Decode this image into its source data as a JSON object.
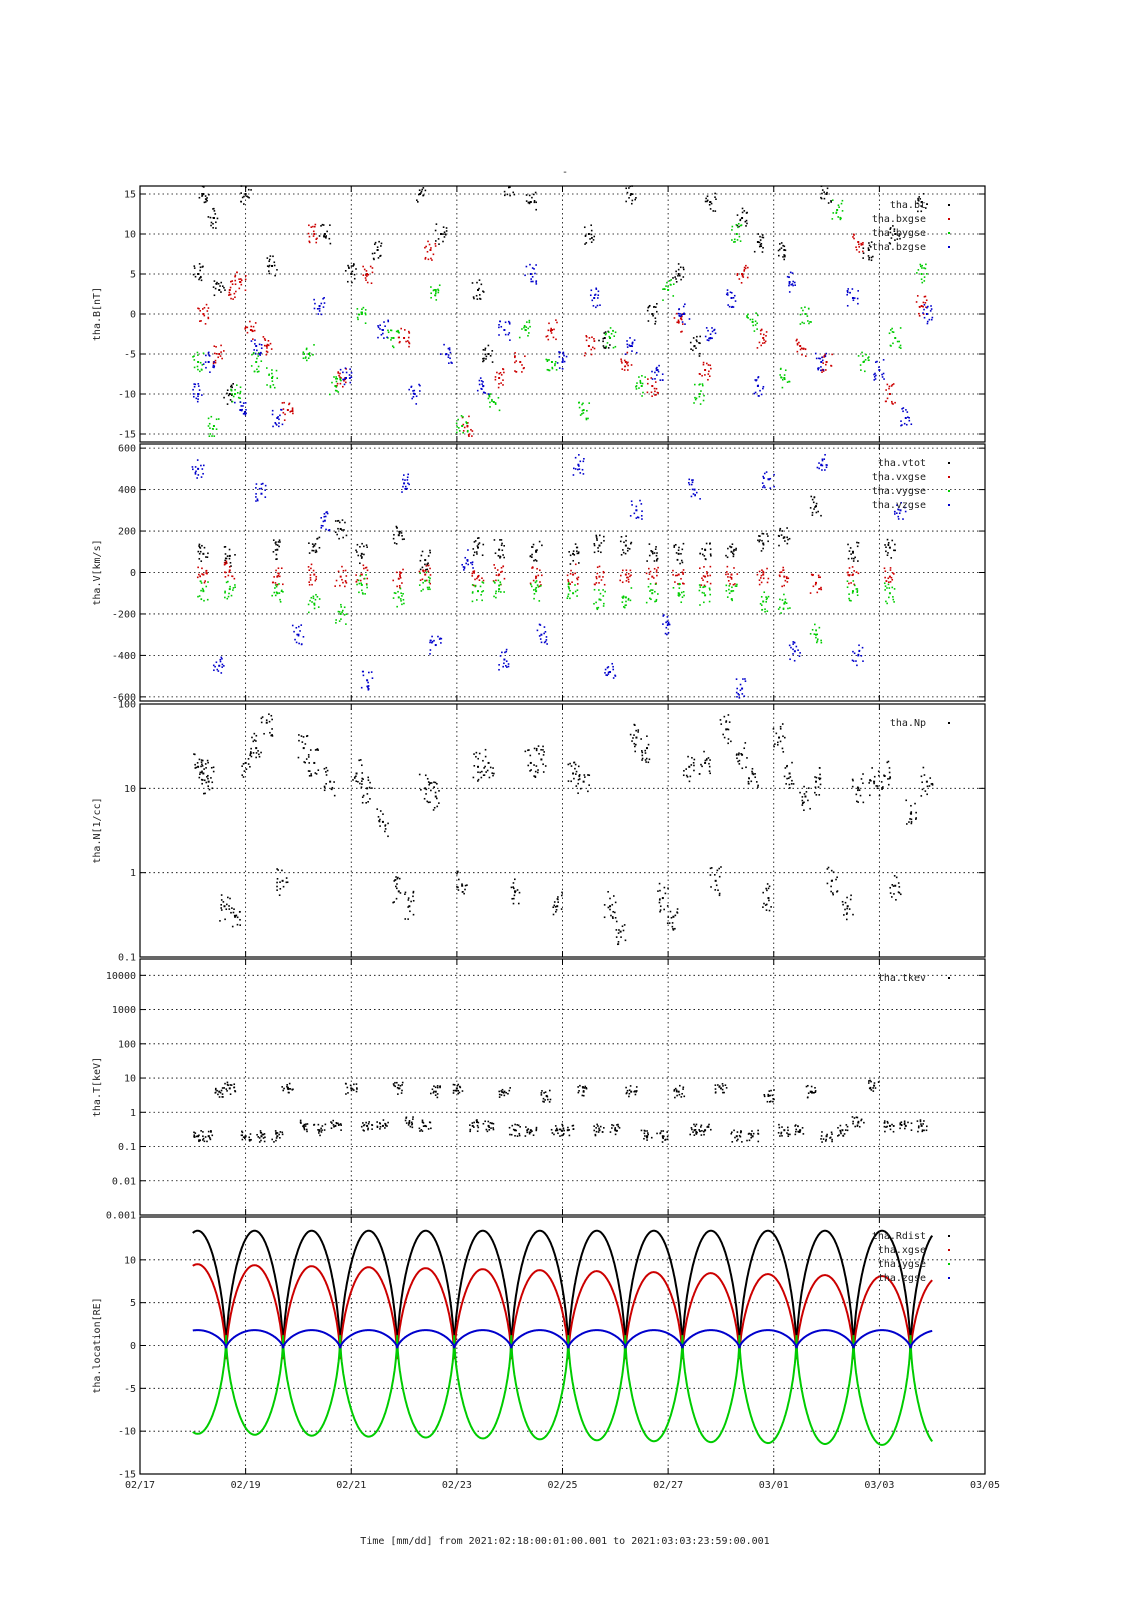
{
  "figure": {
    "title": "-",
    "xlabel": "Time [mm/dd]  from 2021:02:18:00:01:00.001  to  2021:03:03:23:59:00.001"
  },
  "colors": {
    "black": "#000000",
    "red": "#cc0000",
    "green": "#00cc00",
    "blue": "#0000cc"
  },
  "chart_data": [
    {
      "type": "scatter",
      "ylabel": "tha.B[nT]",
      "ylim": [
        -16,
        16
      ],
      "yscale": "linear",
      "yticks": [
        -15,
        -10,
        -5,
        0,
        5,
        10,
        15
      ],
      "ytick_labels": [
        "-15",
        "-10",
        "-5",
        "0",
        "5",
        "10",
        "15"
      ],
      "legend": [
        "tha.bt",
        "tha.bxgse",
        "tha.bygse",
        "tha.bzgse"
      ],
      "legend_position": "top-right",
      "grid": true,
      "series": [
        {
          "name": "tha.bt",
          "color": "black",
          "x": [
            18.1,
            18.2,
            18.4,
            18.5,
            18.7,
            19.0,
            19.5,
            20.5,
            21.0,
            21.5,
            22.3,
            22.7,
            23.4,
            23.6,
            24.0,
            24.4,
            25.5,
            25.8,
            26.3,
            26.7,
            27.2,
            27.5,
            27.8,
            28.4,
            28.7,
            29.2,
            30.0,
            30.8,
            31.3,
            31.8
          ],
          "y": [
            5,
            15,
            12,
            3,
            -10,
            15,
            6,
            10,
            5,
            8,
            15,
            10,
            3,
            -5,
            16,
            14,
            10,
            -3,
            15,
            0,
            5,
            -4,
            14,
            12,
            9,
            8,
            15,
            8,
            10,
            14
          ]
        },
        {
          "name": "tha.bxgse",
          "color": "red",
          "x": [
            18.2,
            18.5,
            18.7,
            18.9,
            19.1,
            19.4,
            19.8,
            20.3,
            20.8,
            21.3,
            22.0,
            22.5,
            23.2,
            23.8,
            24.2,
            24.8,
            25.5,
            26.2,
            26.7,
            27.2,
            27.7,
            28.4,
            28.8,
            29.5,
            30.0,
            30.6,
            31.2,
            31.8
          ],
          "y": [
            0,
            -5,
            3,
            4,
            -2,
            -4,
            -12,
            10,
            -8,
            5,
            -3,
            8,
            -14,
            -8,
            -6,
            -2,
            -4,
            -6,
            -9,
            -1,
            -7,
            5,
            -3,
            -4,
            -6,
            9,
            -10,
            1
          ]
        },
        {
          "name": "tha.bygse",
          "color": "green",
          "x": [
            18.1,
            18.4,
            18.8,
            19.2,
            19.5,
            20.2,
            20.7,
            21.2,
            21.8,
            22.6,
            23.1,
            23.7,
            24.3,
            24.8,
            25.4,
            25.9,
            26.5,
            27.0,
            27.6,
            28.3,
            28.6,
            29.2,
            29.6,
            30.2,
            30.7,
            31.3,
            31.8
          ],
          "y": [
            -6,
            -14,
            -10,
            -6,
            -8,
            -5,
            -9,
            0,
            -3,
            3,
            -14,
            -11,
            -2,
            -6,
            -12,
            -3,
            -9,
            3,
            -10,
            10,
            -1,
            -8,
            0,
            13,
            -6,
            -3,
            5
          ]
        },
        {
          "name": "tha.bzgse",
          "color": "blue",
          "x": [
            18.1,
            18.3,
            18.9,
            19.2,
            19.6,
            20.4,
            20.9,
            21.6,
            22.2,
            22.8,
            23.5,
            23.9,
            24.4,
            25.0,
            25.6,
            26.3,
            26.8,
            27.3,
            27.8,
            28.2,
            28.7,
            29.3,
            29.9,
            30.5,
            31.0,
            31.5,
            31.9
          ],
          "y": [
            -10,
            -6,
            -12,
            -4,
            -13,
            1,
            -8,
            -2,
            -10,
            -5,
            -9,
            -2,
            5,
            -6,
            2,
            -4,
            -7,
            0,
            -3,
            2,
            -9,
            4,
            -6,
            2,
            -7,
            -13,
            0
          ]
        }
      ]
    },
    {
      "type": "scatter",
      "ylabel": "tha.V[km/s]",
      "ylim": [
        -620,
        620
      ],
      "yscale": "linear",
      "yticks": [
        -600,
        -400,
        -200,
        0,
        200,
        400,
        600
      ],
      "ytick_labels": [
        "-600",
        "-400",
        "-200",
        "0",
        "200",
        "400",
        "600"
      ],
      "legend": [
        "tha.vtot",
        "tha.vxgse",
        "tha.vygse",
        "tha.vzgse"
      ],
      "legend_position": "top-right",
      "grid": true,
      "series": [
        {
          "name": "tha.vtot",
          "color": "black",
          "x": [
            18.2,
            18.7,
            19.6,
            20.3,
            20.8,
            21.2,
            21.9,
            22.4,
            23.4,
            23.8,
            24.5,
            25.2,
            25.7,
            26.2,
            26.7,
            27.2,
            27.7,
            28.2,
            28.8,
            29.2,
            29.8,
            30.5,
            31.2
          ],
          "y": [
            90,
            80,
            110,
            130,
            210,
            90,
            180,
            60,
            120,
            110,
            100,
            90,
            130,
            130,
            100,
            90,
            110,
            100,
            140,
            170,
            320,
            100,
            120
          ]
        },
        {
          "name": "tha.vxgse",
          "color": "red",
          "x": [
            18.2,
            18.7,
            19.6,
            20.3,
            20.8,
            21.2,
            21.9,
            22.4,
            23.4,
            23.8,
            24.5,
            25.2,
            25.7,
            26.2,
            26.7,
            27.2,
            27.7,
            28.2,
            28.8,
            29.2,
            29.8,
            30.5,
            31.2
          ],
          "y": [
            -10,
            10,
            -20,
            -10,
            -20,
            -10,
            -30,
            -10,
            -20,
            -10,
            -20,
            -10,
            -20,
            -10,
            -20,
            -10,
            -20,
            -10,
            -10,
            -20,
            -50,
            -10,
            -20
          ]
        },
        {
          "name": "tha.vygse",
          "color": "green",
          "x": [
            18.2,
            18.7,
            19.6,
            20.3,
            20.8,
            21.2,
            21.9,
            22.4,
            23.4,
            23.8,
            24.5,
            25.2,
            25.7,
            26.2,
            26.7,
            27.2,
            27.7,
            28.2,
            28.8,
            29.2,
            29.8,
            30.5,
            31.2
          ],
          "y": [
            -90,
            -80,
            -100,
            -150,
            -200,
            -60,
            -120,
            -40,
            -90,
            -80,
            -90,
            -100,
            -130,
            -120,
            -100,
            -100,
            -110,
            -90,
            -140,
            -150,
            -300,
            -90,
            -100
          ]
        },
        {
          "name": "tha.vzgse",
          "color": "blue",
          "x": [
            18.1,
            18.5,
            19.3,
            20.0,
            20.5,
            21.3,
            22.0,
            22.6,
            23.2,
            23.9,
            24.6,
            25.3,
            25.9,
            26.4,
            27.0,
            27.5,
            28.4,
            28.9,
            29.4,
            29.9,
            30.6,
            31.4
          ],
          "y": [
            500,
            -450,
            380,
            -300,
            250,
            -520,
            430,
            -350,
            60,
            -420,
            -300,
            520,
            -480,
            300,
            -250,
            400,
            -560,
            450,
            -380,
            520,
            -400,
            300
          ]
        }
      ]
    },
    {
      "type": "scatter",
      "ylabel": "tha.N[1/cc]",
      "ylim": [
        0.1,
        100
      ],
      "yscale": "log",
      "yticks": [
        0.1,
        1,
        10,
        100
      ],
      "ytick_labels": [
        "0.1",
        "1",
        "10",
        "100"
      ],
      "legend": [
        "tha.Np"
      ],
      "legend_position": "top-right",
      "grid": true,
      "series": [
        {
          "name": "tha.Np",
          "color": "black",
          "x": [
            18.1,
            18.2,
            18.3,
            18.6,
            18.8,
            19.0,
            19.2,
            19.4,
            19.7,
            20.1,
            20.3,
            20.6,
            21.1,
            21.3,
            21.6,
            21.9,
            22.1,
            22.4,
            22.6,
            23.1,
            23.4,
            23.6,
            24.1,
            24.4,
            24.6,
            24.9,
            25.2,
            25.4,
            25.9,
            26.1,
            26.4,
            26.6,
            26.9,
            27.1,
            27.4,
            27.7,
            27.9,
            28.1,
            28.4,
            28.6,
            28.9,
            29.1,
            29.3,
            29.6,
            29.8,
            30.1,
            30.4,
            30.6,
            30.9,
            31.1,
            31.3,
            31.6,
            31.9
          ],
          "y": [
            18,
            15,
            12,
            0.4,
            0.3,
            20,
            30,
            60,
            0.8,
            30,
            20,
            12,
            15,
            10,
            4,
            0.6,
            0.4,
            10,
            8,
            0.7,
            18,
            20,
            0.6,
            20,
            22,
            0.4,
            15,
            12,
            0.4,
            0.2,
            40,
            30,
            0.5,
            0.3,
            18,
            20,
            0.8,
            50,
            25,
            15,
            0.5,
            40,
            15,
            8,
            12,
            0.8,
            0.4,
            10,
            12,
            14,
            0.7,
            5,
            12
          ]
        }
      ]
    },
    {
      "type": "scatter",
      "ylabel": "tha.T[keV]",
      "ylim": [
        0.001,
        30000
      ],
      "yscale": "log",
      "yticks": [
        0.001,
        0.01,
        0.1,
        1,
        10,
        100,
        1000,
        10000
      ],
      "ytick_labels": [
        "0.001",
        "0.01",
        "0.1",
        "1",
        "10",
        "100",
        "1000",
        "10000"
      ],
      "legend": [
        "tha.tkev"
      ],
      "legend_position": "top-right",
      "grid": true,
      "series": [
        {
          "name": "tha.tkev",
          "color": "black",
          "x": [
            18.1,
            18.3,
            18.5,
            18.7,
            19.0,
            19.3,
            19.6,
            19.8,
            20.1,
            20.4,
            20.7,
            21.0,
            21.3,
            21.6,
            21.9,
            22.1,
            22.4,
            22.6,
            23.0,
            23.3,
            23.6,
            23.9,
            24.1,
            24.4,
            24.7,
            24.9,
            25.1,
            25.4,
            25.7,
            26.0,
            26.3,
            26.6,
            26.9,
            27.2,
            27.5,
            27.7,
            28.0,
            28.3,
            28.6,
            28.9,
            29.2,
            29.5,
            29.7,
            30.0,
            30.3,
            30.6,
            30.9,
            31.2,
            31.5,
            31.8
          ],
          "y": [
            0.2,
            0.2,
            4,
            5,
            0.2,
            0.2,
            0.2,
            5,
            0.4,
            0.3,
            0.4,
            5,
            0.4,
            0.4,
            5,
            0.5,
            0.4,
            4,
            5,
            0.4,
            0.4,
            4,
            0.3,
            0.3,
            3,
            0.3,
            0.3,
            4,
            0.3,
            0.3,
            4,
            0.2,
            0.2,
            4,
            0.3,
            0.3,
            5,
            0.2,
            0.2,
            3,
            0.3,
            0.3,
            4,
            0.2,
            0.3,
            0.5,
            6,
            0.4,
            0.4,
            0.4
          ]
        }
      ]
    },
    {
      "type": "line",
      "ylabel": "tha.location[RE]",
      "ylim": [
        -15,
        15
      ],
      "yscale": "linear",
      "yticks": [
        -15,
        -10,
        -5,
        0,
        5,
        10
      ],
      "ytick_labels": [
        "-15",
        "-10",
        "-5",
        "0",
        "5",
        "10"
      ],
      "legend": [
        "tha.Rdist",
        "tha.xgse",
        "tha.ygse",
        "tha.zgse"
      ],
      "legend_position": "top-right",
      "grid": true,
      "orbit": {
        "period_days": 1.08,
        "first_perigee_day": 18.63,
        "start_day": 18.0,
        "end_day": 32.0
      },
      "series": [
        {
          "name": "tha.Rdist",
          "color": "black",
          "apogee": 13.4,
          "perigee": -1.0
        },
        {
          "name": "tha.xgse",
          "color": "red",
          "apogee_start": 9.5,
          "apogee_end": 8.0,
          "perigee": -1.6
        },
        {
          "name": "tha.ygse",
          "color": "green",
          "apogee_start": -10.3,
          "apogee_end": -11.7,
          "perigee": 1.2
        },
        {
          "name": "tha.zgse",
          "color": "blue",
          "max": 1.8,
          "min": -0.3
        }
      ],
      "xlim": [
        17,
        33
      ],
      "xticks": [
        17,
        19,
        21,
        23,
        25,
        27,
        29,
        31,
        33
      ],
      "xtick_labels": [
        "02/17",
        "02/19",
        "02/21",
        "02/23",
        "02/25",
        "02/27",
        "03/01",
        "03/03",
        "03/05"
      ]
    }
  ]
}
